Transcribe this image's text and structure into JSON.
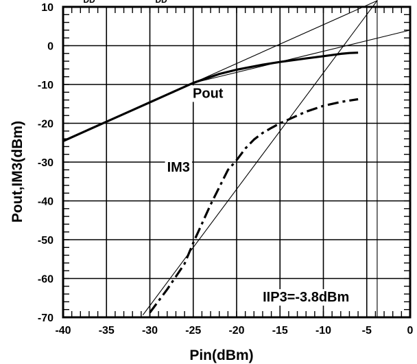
{
  "chart_data": {
    "type": "line",
    "title": "",
    "xlabel": "Pin(dBm)",
    "ylabel": "Pout,IM3(dBm)",
    "xlim": [
      -40,
      0
    ],
    "ylim": [
      -70,
      10
    ],
    "x_ticks": [
      "-40",
      "-35",
      "-30",
      "-25",
      "-20",
      "-15",
      "-10",
      "-5",
      "0"
    ],
    "y_ticks": [
      "10",
      "0",
      "-10",
      "-20",
      "-30",
      "-40",
      "-50",
      "-60",
      "-70"
    ],
    "grid": true,
    "clipped_top_text": [
      "DD",
      "DD"
    ],
    "series": [
      {
        "name": "Pout",
        "style": "solid",
        "x": [
          -40,
          -37,
          -35,
          -32,
          -30,
          -28,
          -25,
          -22,
          -20,
          -17,
          -15,
          -12,
          -10,
          -8,
          -7,
          -6
        ],
        "y": [
          -24.6,
          -21.6,
          -19.6,
          -16.6,
          -14.6,
          -12.6,
          -9.6,
          -7.3,
          -6.2,
          -4.9,
          -4.2,
          -3.3,
          -2.7,
          -2.1,
          -1.9,
          -1.8
        ]
      },
      {
        "name": "IM3",
        "style": "dash-dot",
        "x": [
          -30,
          -28,
          -26,
          -25,
          -23,
          -21,
          -20,
          -19,
          -18,
          -17,
          -16,
          -15,
          -14,
          -12,
          -10,
          -8,
          -6
        ],
        "y": [
          -68.8,
          -62.8,
          -56.2,
          -50.8,
          -41,
          -32,
          -29.5,
          -26.5,
          -24.2,
          -22.5,
          -21.2,
          -20,
          -19,
          -17,
          -15.5,
          -14.5,
          -13.8
        ]
      }
    ],
    "extrapolation_lines": [
      {
        "x": [
          -40,
          -3.8
        ],
        "y": [
          -24.6,
          11.6
        ]
      },
      {
        "x": [
          -30.8,
          -3.8
        ],
        "y": [
          -69.4,
          11.6
        ]
      },
      {
        "x": [
          -25,
          0
        ],
        "y": [
          -9.6,
          4
        ]
      }
    ],
    "vertical_marker_x": -3.8,
    "annotations": [
      {
        "text": "Pout",
        "x": -23.3,
        "y": -12.5
      },
      {
        "text": "IM3",
        "x": -26.7,
        "y": -31.5
      },
      {
        "text": "IIP3=-3.8dBm",
        "x": -12,
        "y": -65
      }
    ],
    "colors": {
      "lines": "#000000",
      "grid": "#000000",
      "background": "#ffffff"
    }
  }
}
